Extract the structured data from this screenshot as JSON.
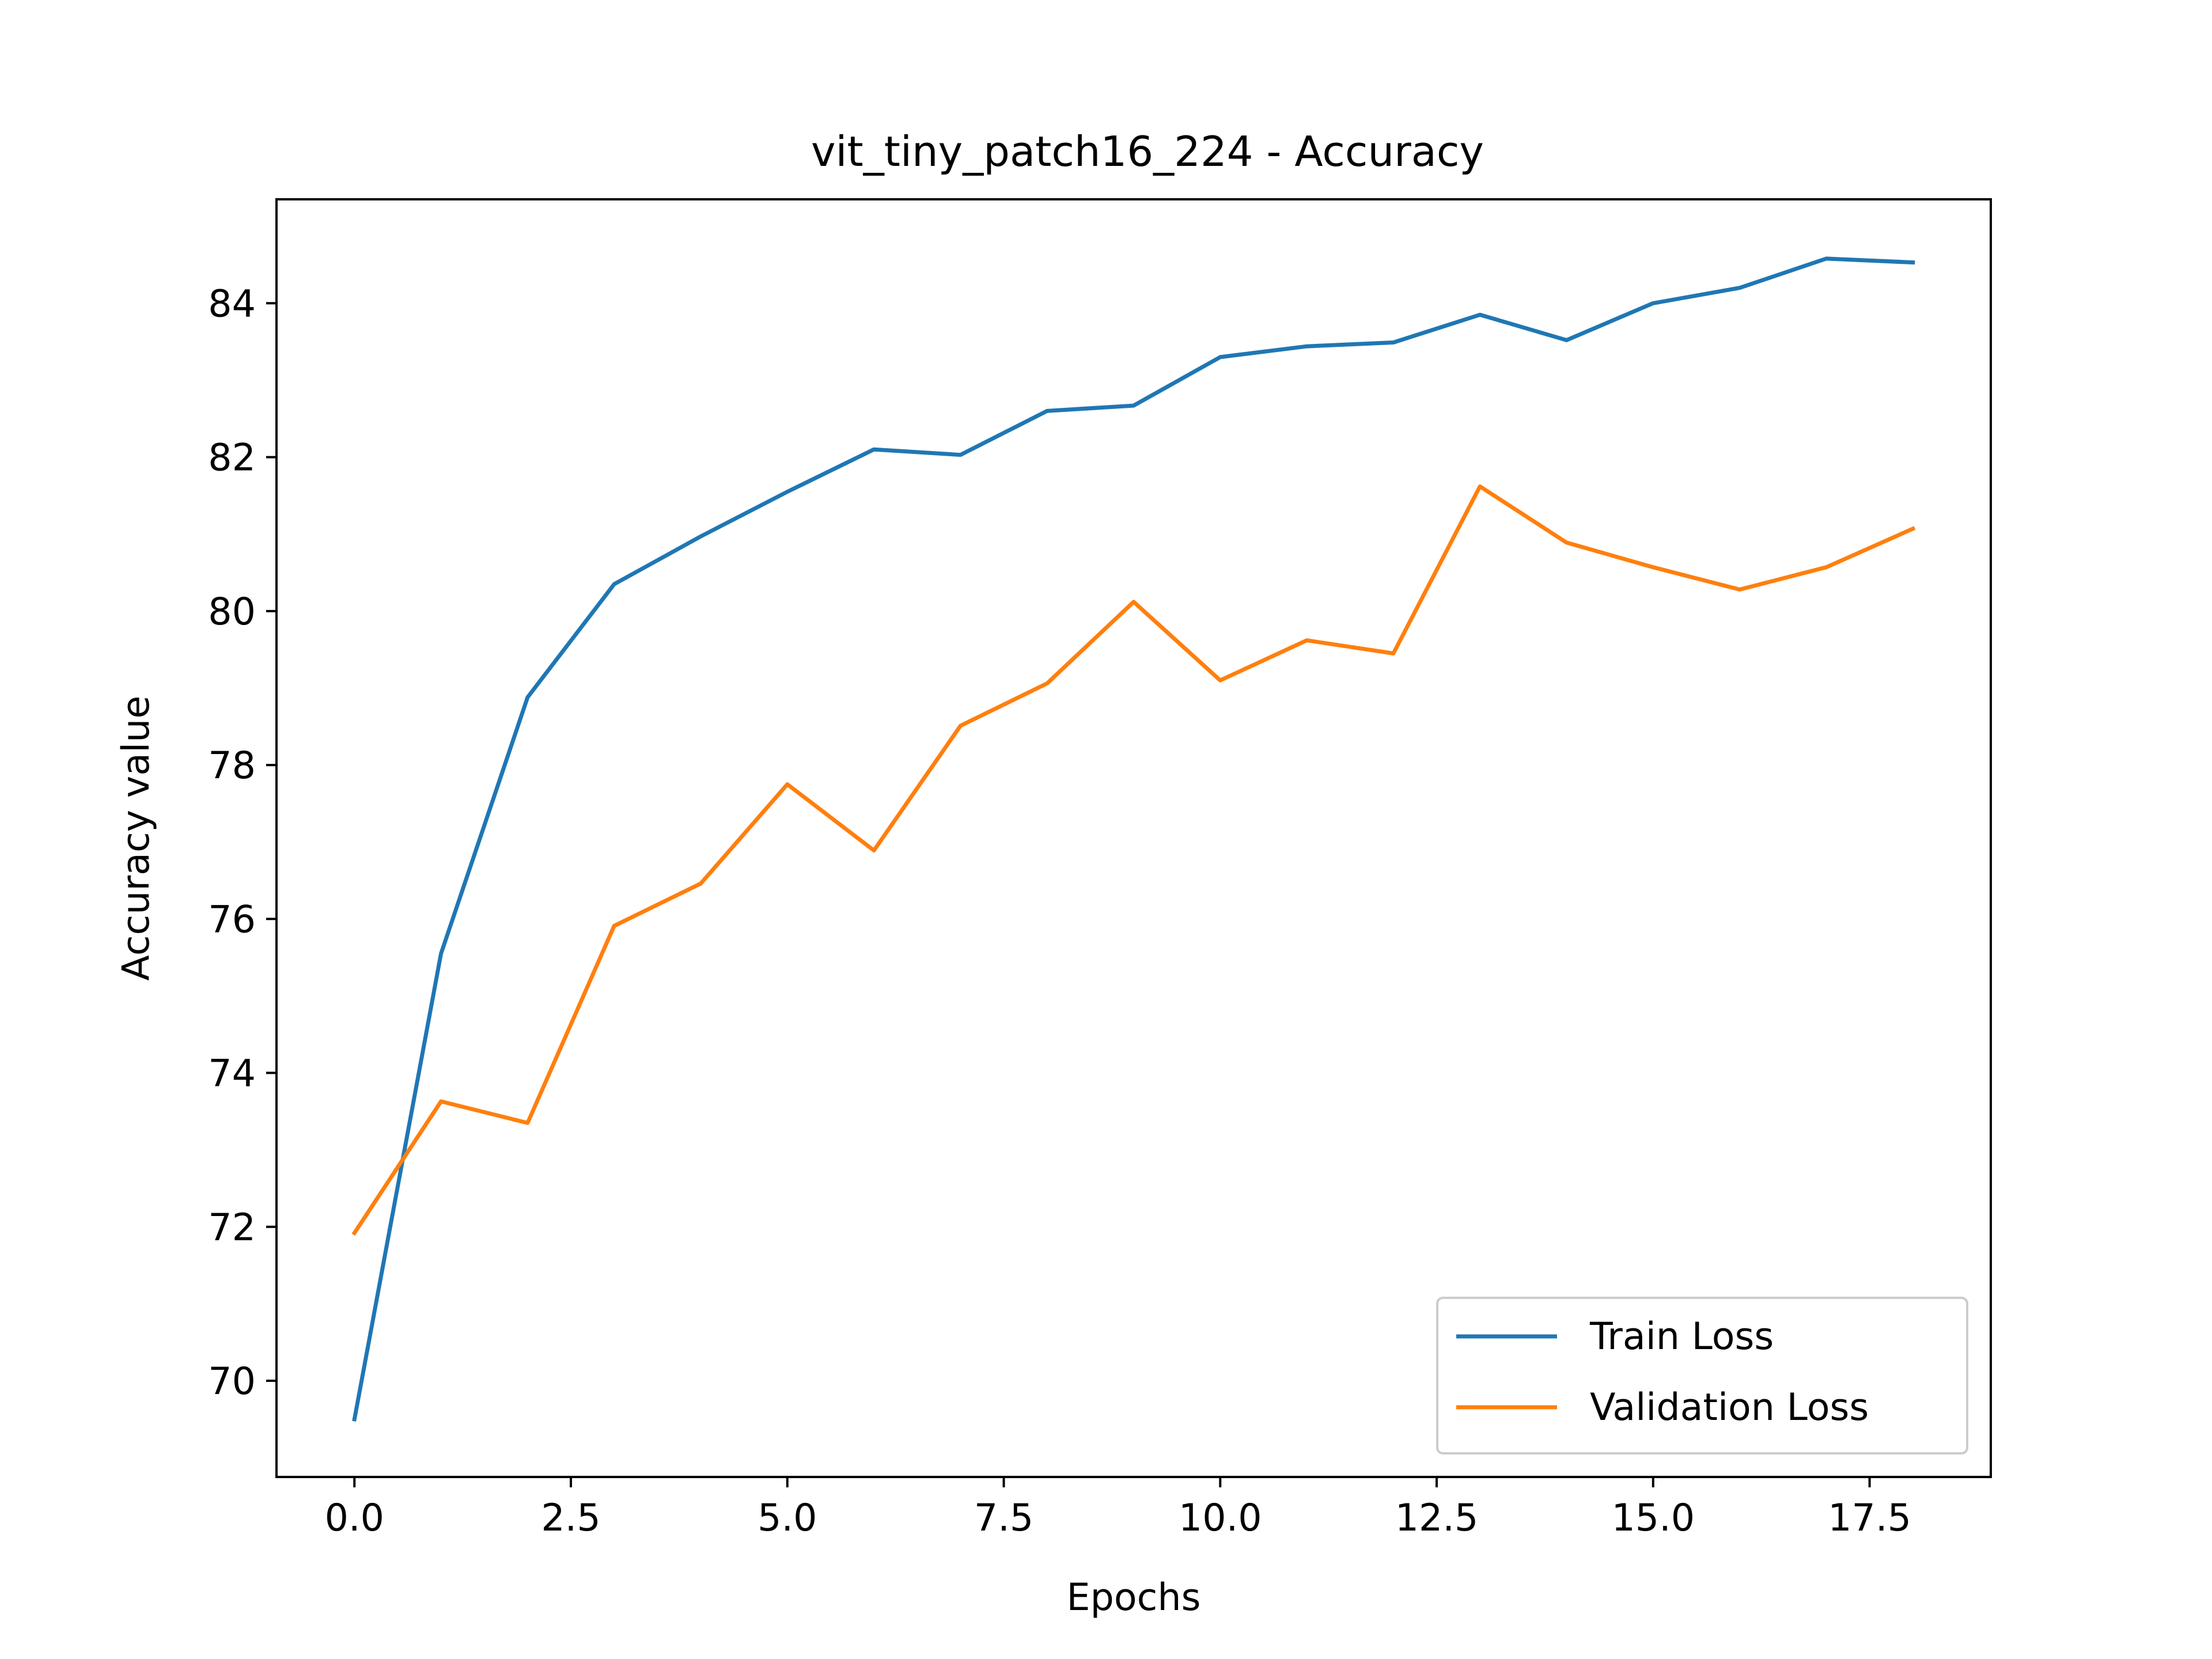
{
  "chart_data": {
    "type": "line",
    "title": "vit_tiny_patch16_224 - Accuracy",
    "xlabel": "Epochs",
    "ylabel": "Accuracy value",
    "xlim": [
      -0.9,
      18.9
    ],
    "ylim": [
      68.75,
      85.35
    ],
    "xticks": [
      0.0,
      2.5,
      5.0,
      7.5,
      10.0,
      12.5,
      15.0,
      17.5
    ],
    "xtick_labels": [
      "0.0",
      "2.5",
      "5.0",
      "7.5",
      "10.0",
      "12.5",
      "15.0",
      "17.5"
    ],
    "yticks": [
      70,
      72,
      74,
      76,
      78,
      80,
      82,
      84
    ],
    "ytick_labels": [
      "70",
      "72",
      "74",
      "76",
      "78",
      "80",
      "82",
      "84"
    ],
    "grid": false,
    "legend_position": "lower-right",
    "x": [
      0,
      1,
      2,
      3,
      4,
      5,
      6,
      7,
      8,
      9,
      10,
      11,
      12,
      13,
      14,
      15,
      16,
      17,
      18
    ],
    "series": [
      {
        "name": "Train Loss",
        "color": "#1f77b4",
        "values": [
          69.5,
          75.55,
          78.88,
          80.35,
          80.97,
          81.55,
          82.1,
          82.03,
          82.6,
          82.67,
          83.3,
          83.44,
          83.49,
          83.85,
          83.52,
          84.0,
          84.2,
          84.58,
          84.53
        ]
      },
      {
        "name": "Validation Loss",
        "color": "#ff7f0e",
        "values": [
          71.92,
          73.63,
          73.35,
          75.91,
          76.46,
          77.75,
          76.89,
          78.51,
          79.06,
          80.12,
          79.1,
          79.62,
          79.45,
          81.62,
          80.89,
          80.57,
          80.28,
          80.57,
          81.07
        ]
      }
    ]
  }
}
